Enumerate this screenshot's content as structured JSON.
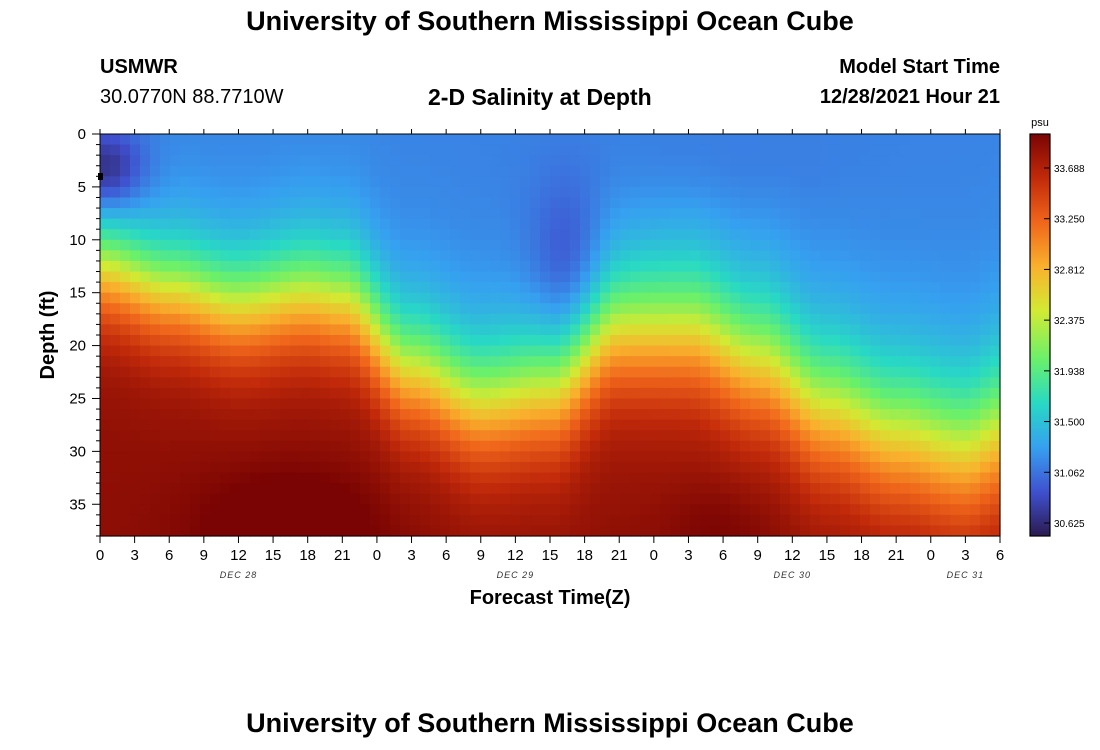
{
  "page": {
    "title": "University of Southern Mississippi Ocean Cube",
    "title_bottom": "University of Southern Mississippi Ocean Cube",
    "station_id": "USMWR",
    "coords": "30.0770N  88.7710W",
    "plot_title": "2-D Salinity at Depth",
    "model_start_label": "Model Start Time",
    "model_start_value": "12/28/2021 Hour 21"
  },
  "colors": {
    "turbo_stops": [
      "#2b1a4f",
      "#3f51d0",
      "#36a0f0",
      "#28d9c4",
      "#6af06a",
      "#d2ea33",
      "#f9b12d",
      "#f0661b",
      "#c22a0a",
      "#7a0403"
    ]
  },
  "chart_data": {
    "type": "heatmap",
    "title": "2-D Salinity at Depth",
    "xlabel": "Forecast Time(Z)",
    "ylabel": "Depth (ft)",
    "colorbar_unit": "psu",
    "colorbar_ticks": [
      "33.688",
      "33.250",
      "32.812",
      "32.375",
      "31.938",
      "31.500",
      "31.062",
      "30.625"
    ],
    "value_range": [
      30.5,
      33.8
    ],
    "x_range_hours": [
      0,
      78
    ],
    "x_ticks": [
      {
        "hour": 0,
        "label": "0"
      },
      {
        "hour": 3,
        "label": "3"
      },
      {
        "hour": 6,
        "label": "6"
      },
      {
        "hour": 9,
        "label": "9"
      },
      {
        "hour": 12,
        "label": "12"
      },
      {
        "hour": 15,
        "label": "15"
      },
      {
        "hour": 18,
        "label": "18"
      },
      {
        "hour": 21,
        "label": "21"
      },
      {
        "hour": 24,
        "label": "0"
      },
      {
        "hour": 27,
        "label": "3"
      },
      {
        "hour": 30,
        "label": "6"
      },
      {
        "hour": 33,
        "label": "9"
      },
      {
        "hour": 36,
        "label": "12"
      },
      {
        "hour": 39,
        "label": "15"
      },
      {
        "hour": 42,
        "label": "18"
      },
      {
        "hour": 45,
        "label": "21"
      },
      {
        "hour": 48,
        "label": "0"
      },
      {
        "hour": 51,
        "label": "3"
      },
      {
        "hour": 54,
        "label": "6"
      },
      {
        "hour": 57,
        "label": "9"
      },
      {
        "hour": 60,
        "label": "12"
      },
      {
        "hour": 63,
        "label": "15"
      },
      {
        "hour": 66,
        "label": "18"
      },
      {
        "hour": 69,
        "label": "21"
      },
      {
        "hour": 72,
        "label": "0"
      },
      {
        "hour": 75,
        "label": "3"
      },
      {
        "hour": 78,
        "label": "6"
      }
    ],
    "date_labels": [
      {
        "hour": 12,
        "label": "DEC 28"
      },
      {
        "hour": 36,
        "label": "DEC 29"
      },
      {
        "hour": 60,
        "label": "DEC 30"
      },
      {
        "hour": 75,
        "label": "DEC 31"
      }
    ],
    "y_range_ft": [
      0,
      38
    ],
    "y_ticks": [
      0,
      5,
      10,
      15,
      20,
      25,
      30,
      35
    ],
    "halocline_depth_ft": {
      "hours": [
        0,
        6,
        12,
        18,
        21,
        27,
        33,
        39,
        45,
        51,
        57,
        63,
        69,
        75,
        78
      ],
      "depths": [
        12.5,
        14.5,
        16.0,
        15.0,
        15.5,
        22.0,
        25.0,
        24.0,
        18.0,
        18.0,
        21.0,
        25.5,
        28.0,
        29.5,
        28.0
      ]
    },
    "surface_salinity_psu": 31.1,
    "deep_salinity_psu": 33.6,
    "features": [
      {
        "name": "fresh-lens",
        "hour": 0.5,
        "depth_ft": 3.5,
        "value_psu": 30.6
      },
      {
        "name": "fresh-core",
        "hour": 40.5,
        "depth_ft": 12.5,
        "value_psu": 30.8
      },
      {
        "name": "salty-max",
        "hour": 16.5,
        "depth_ft": 37.5,
        "value_psu": 33.8
      },
      {
        "name": "salty-max-2",
        "hour": 54,
        "depth_ft": 37.5,
        "value_psu": 33.55
      }
    ]
  }
}
